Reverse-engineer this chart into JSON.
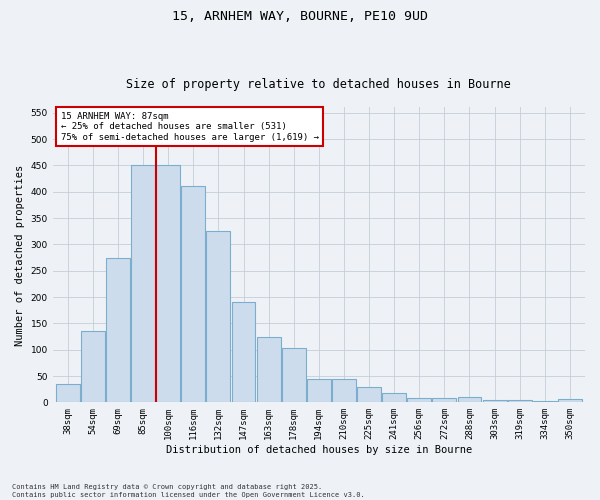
{
  "title": "15, ARNHEM WAY, BOURNE, PE10 9UD",
  "subtitle": "Size of property relative to detached houses in Bourne",
  "xlabel": "Distribution of detached houses by size in Bourne",
  "ylabel": "Number of detached properties",
  "categories": [
    "38sqm",
    "54sqm",
    "69sqm",
    "85sqm",
    "100sqm",
    "116sqm",
    "132sqm",
    "147sqm",
    "163sqm",
    "178sqm",
    "194sqm",
    "210sqm",
    "225sqm",
    "241sqm",
    "256sqm",
    "272sqm",
    "288sqm",
    "303sqm",
    "319sqm",
    "334sqm",
    "350sqm"
  ],
  "values": [
    35,
    135,
    275,
    450,
    450,
    410,
    325,
    190,
    125,
    103,
    45,
    45,
    30,
    18,
    8,
    8,
    10,
    5,
    5,
    3,
    6
  ],
  "bar_color": "#ccdcec",
  "bar_edge_color": "#7aaecc",
  "vline_color": "#cc0000",
  "vline_x_index": 3.5,
  "ylim": [
    0,
    560
  ],
  "yticks": [
    0,
    50,
    100,
    150,
    200,
    250,
    300,
    350,
    400,
    450,
    500,
    550
  ],
  "annotation_box_text": "15 ARNHEM WAY: 87sqm\n← 25% of detached houses are smaller (531)\n75% of semi-detached houses are larger (1,619) →",
  "box_edge_color": "#cc0000",
  "footnote": "Contains HM Land Registry data © Crown copyright and database right 2025.\nContains public sector information licensed under the Open Government Licence v3.0.",
  "bg_color": "#eef2f7",
  "grid_color": "#c5cdd8",
  "title_fontsize": 9.5,
  "subtitle_fontsize": 8.5,
  "xlabel_fontsize": 7.5,
  "ylabel_fontsize": 7.5,
  "tick_fontsize": 6.5,
  "annotation_fontsize": 6.5,
  "footnote_fontsize": 5.0
}
